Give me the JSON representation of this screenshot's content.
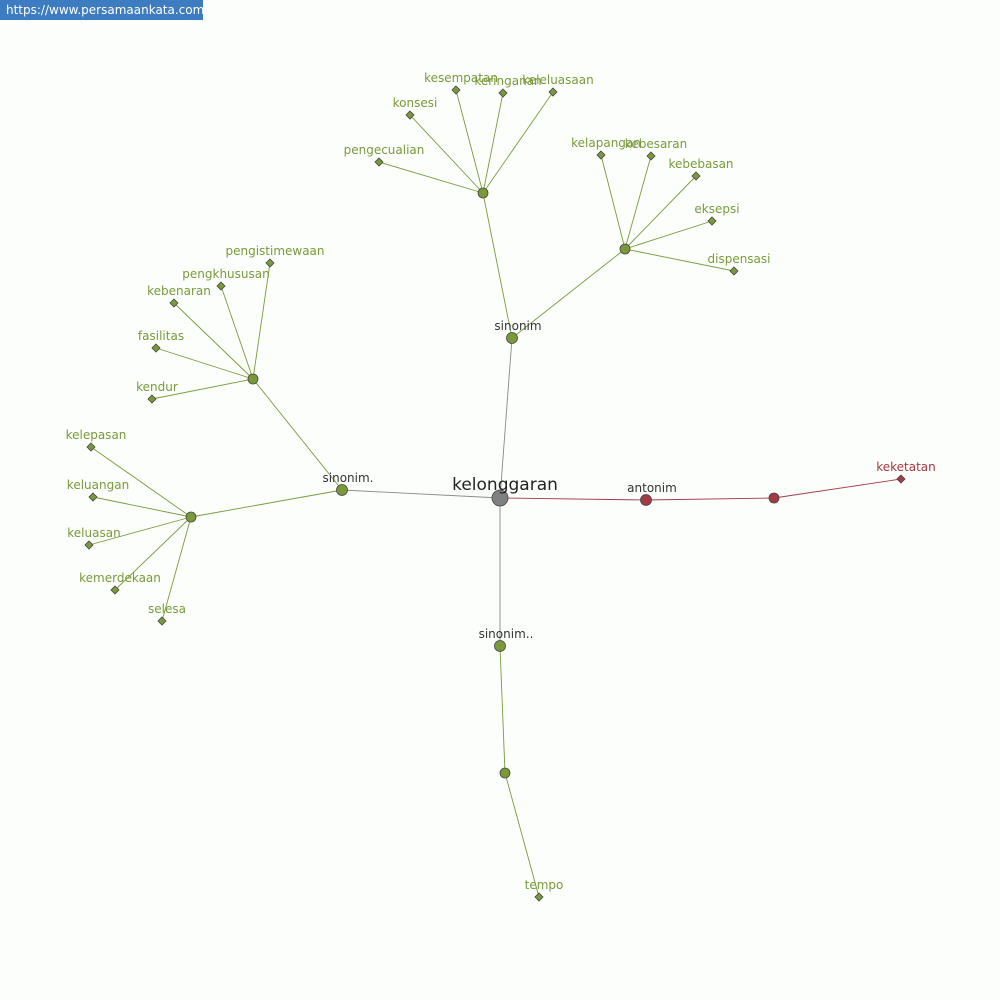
{
  "watermark": "https://www.persamaankata.com",
  "colors": {
    "synonym": "#7a9a3a",
    "antonym": "#a33a45",
    "center": "#808080",
    "label_dark": "#333333"
  },
  "center": {
    "label": "kelonggaran"
  },
  "groups": [
    {
      "label": "sinonim",
      "hubs": [
        {
          "leaves": [
            "pengecualian",
            "konsesi",
            "kesempatan",
            "keringanan",
            "keleluasaan"
          ]
        },
        {
          "leaves": [
            "kelapangan",
            "kebesaran",
            "kebebasan",
            "eksepsi",
            "dispensasi"
          ]
        }
      ]
    },
    {
      "label": "sinonim.",
      "hubs": [
        {
          "leaves": [
            "pengistimewaan",
            "pengkhususan",
            "kebenaran",
            "fasilitas",
            "kendur"
          ]
        },
        {
          "leaves": [
            "kelepasan",
            "keluangan",
            "keluasan",
            "kemerdekaan",
            "selesa"
          ]
        }
      ]
    },
    {
      "label": "sinonim..",
      "hubs": [
        {
          "leaves": [
            "tempo"
          ]
        }
      ]
    },
    {
      "label": "antonim",
      "type": "antonym",
      "hubs": [
        {
          "leaves": [
            "keketatan"
          ]
        }
      ]
    }
  ]
}
